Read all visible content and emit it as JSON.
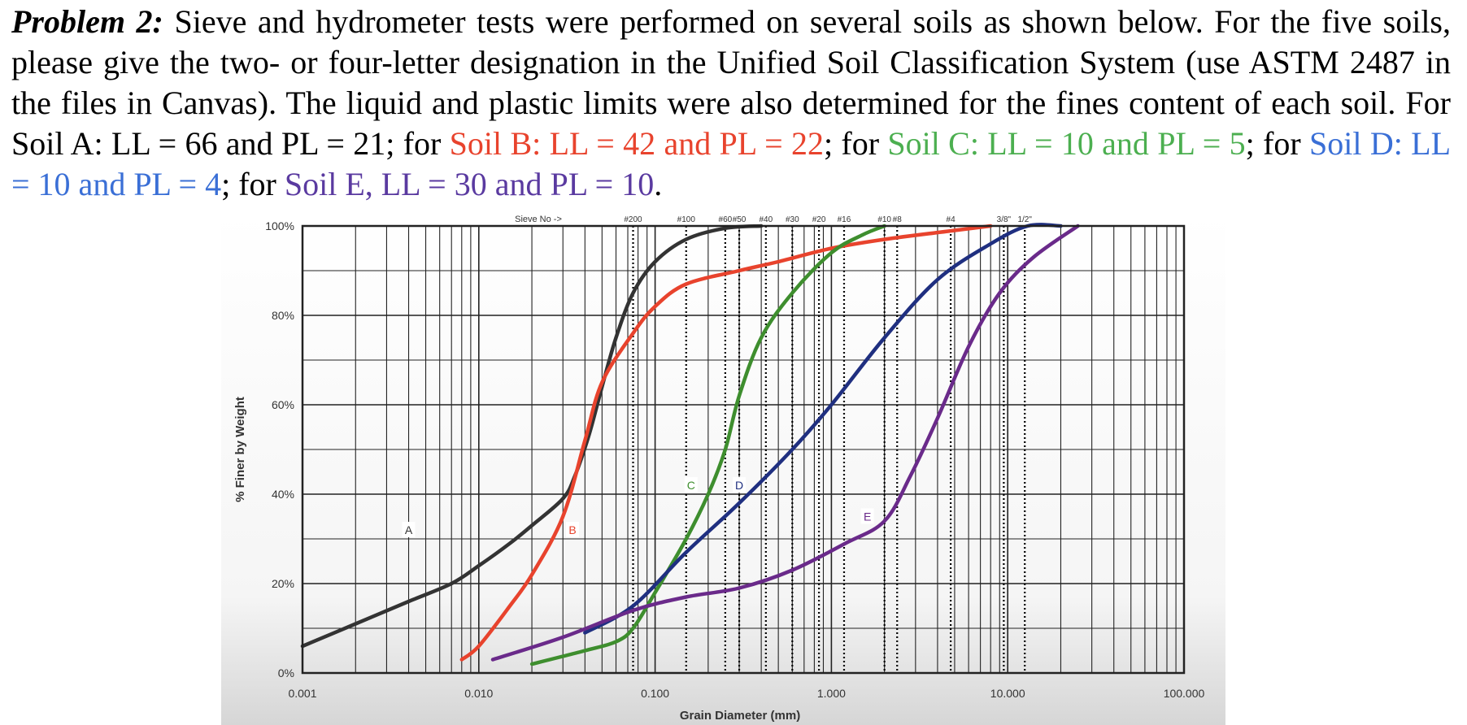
{
  "problem": {
    "label": "Problem 2:",
    "s1": "Sieve and hydrometer tests were performed on several soils as shown below. For the five soils, please give the two- or four-letter designation in the Unified Soil Classification System (use ASTM 2487 in the files in Canvas). The liquid and plastic limits were also determined for the fines content of each soil. For Soil A: LL = 66 and PL = 21; for ",
    "soilB": "Soil B: LL = 42 and PL = 22",
    "s2": "; for ",
    "soilC": "Soil C: LL = 10 and PL = 5",
    "s3": "; for ",
    "soilD": "Soil D: LL = 10 and PL = 4",
    "s4": "; for ",
    "soilE": "Soil E, LL = 30 and PL = 10",
    "s5": "."
  },
  "colors": {
    "soilB": "#e8432d",
    "soilC": "#4caf50",
    "soilD": "#3a6fd6",
    "soilE": "#5a3aa0"
  },
  "chart_data": {
    "type": "line",
    "xscale": "log",
    "xlim": [
      0.001,
      100
    ],
    "ylim": [
      0,
      100
    ],
    "xlabel": "Grain Diameter (mm)",
    "ylabel": "% Finer by Weight",
    "x_ticks": [
      {
        "value": 0.001,
        "label": "0.001"
      },
      {
        "value": 0.01,
        "label": "0.010"
      },
      {
        "value": 0.1,
        "label": "0.100"
      },
      {
        "value": 1,
        "label": "1.000"
      },
      {
        "value": 10,
        "label": "10.000"
      },
      {
        "value": 100,
        "label": "100.000"
      }
    ],
    "y_ticks": [
      {
        "value": 0,
        "label": "0%"
      },
      {
        "value": 20,
        "label": "20%"
      },
      {
        "value": 40,
        "label": "40%"
      },
      {
        "value": 60,
        "label": "60%"
      },
      {
        "value": 80,
        "label": "80%"
      },
      {
        "value": 100,
        "label": "100%"
      }
    ],
    "sieve_header": "Sieve No ->",
    "sieves": [
      {
        "label": "#200",
        "size": 0.075
      },
      {
        "label": "#100",
        "size": 0.15
      },
      {
        "label": "#60",
        "size": 0.25
      },
      {
        "label": "#50",
        "size": 0.3
      },
      {
        "label": "#40",
        "size": 0.425
      },
      {
        "label": "#30",
        "size": 0.6
      },
      {
        "label": "#20",
        "size": 0.85
      },
      {
        "label": "#16",
        "size": 1.18
      },
      {
        "label": "#10",
        "size": 2.0
      },
      {
        "label": "#8",
        "size": 2.36
      },
      {
        "label": "#4",
        "size": 4.75
      },
      {
        "label": "3/8\"",
        "size": 9.5
      },
      {
        "label": "1/2\"",
        "size": 12.5
      }
    ],
    "series": [
      {
        "name": "A",
        "color": "#333333",
        "label_at": [
          0.004,
          32
        ],
        "points": [
          [
            0.001,
            6
          ],
          [
            0.002,
            11
          ],
          [
            0.004,
            16
          ],
          [
            0.007,
            20
          ],
          [
            0.01,
            24
          ],
          [
            0.015,
            29
          ],
          [
            0.02,
            33
          ],
          [
            0.03,
            39
          ],
          [
            0.035,
            44
          ],
          [
            0.042,
            53
          ],
          [
            0.05,
            64
          ],
          [
            0.06,
            75
          ],
          [
            0.075,
            85
          ],
          [
            0.1,
            92
          ],
          [
            0.15,
            97
          ],
          [
            0.25,
            99.5
          ],
          [
            0.4,
            100
          ]
        ]
      },
      {
        "name": "B",
        "color": "#e8432d",
        "label_at": [
          0.034,
          32
        ],
        "points": [
          [
            0.008,
            3
          ],
          [
            0.01,
            6
          ],
          [
            0.015,
            15
          ],
          [
            0.02,
            22
          ],
          [
            0.03,
            35
          ],
          [
            0.04,
            52
          ],
          [
            0.05,
            65
          ],
          [
            0.075,
            76
          ],
          [
            0.1,
            82
          ],
          [
            0.15,
            87
          ],
          [
            0.3,
            90
          ],
          [
            0.5,
            92
          ],
          [
            1,
            95
          ],
          [
            2,
            97
          ],
          [
            5,
            99
          ],
          [
            8,
            100
          ]
        ]
      },
      {
        "name": "C",
        "color": "#3e8e2e",
        "label_at": [
          0.16,
          42
        ],
        "points": [
          [
            0.02,
            2
          ],
          [
            0.04,
            5
          ],
          [
            0.06,
            7
          ],
          [
            0.075,
            10
          ],
          [
            0.1,
            18
          ],
          [
            0.15,
            30
          ],
          [
            0.2,
            40
          ],
          [
            0.25,
            50
          ],
          [
            0.3,
            62
          ],
          [
            0.4,
            75
          ],
          [
            0.6,
            85
          ],
          [
            1,
            94
          ],
          [
            1.5,
            98
          ],
          [
            2,
            100
          ]
        ]
      },
      {
        "name": "D",
        "color": "#1f2f80",
        "label_at": [
          0.3,
          42
        ],
        "points": [
          [
            0.04,
            9
          ],
          [
            0.075,
            15
          ],
          [
            0.15,
            27
          ],
          [
            0.3,
            38
          ],
          [
            0.6,
            50
          ],
          [
            1,
            60
          ],
          [
            2,
            75
          ],
          [
            4,
            88
          ],
          [
            8,
            96
          ],
          [
            13,
            100
          ],
          [
            20,
            100
          ]
        ]
      },
      {
        "name": "E",
        "color": "#6a2a8a",
        "label_at": [
          1.6,
          35
        ],
        "points": [
          [
            0.012,
            3
          ],
          [
            0.03,
            8
          ],
          [
            0.075,
            14
          ],
          [
            0.15,
            17
          ],
          [
            0.3,
            19
          ],
          [
            0.6,
            23
          ],
          [
            1.2,
            29
          ],
          [
            2,
            34
          ],
          [
            2.8,
            44
          ],
          [
            4,
            57
          ],
          [
            6,
            73
          ],
          [
            9,
            85
          ],
          [
            14,
            93
          ],
          [
            25,
            100
          ]
        ]
      }
    ]
  }
}
